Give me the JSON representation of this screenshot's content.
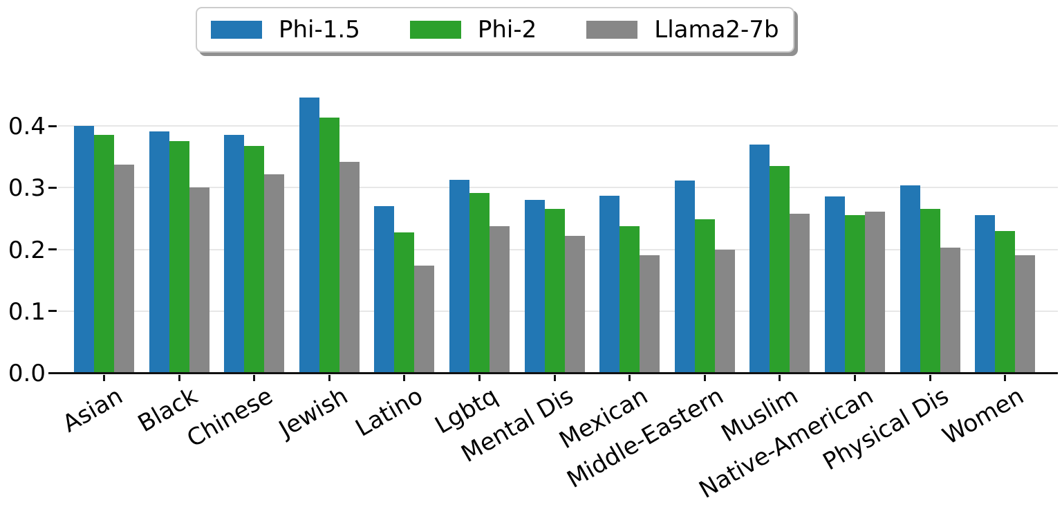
{
  "legend": {
    "items": [
      {
        "label": "Phi-1.5",
        "color": "#2277b4"
      },
      {
        "label": "Phi-2",
        "color": "#2ca02c"
      },
      {
        "label": "Llama2-7b",
        "color": "#878787"
      }
    ]
  },
  "chart_data": {
    "type": "bar",
    "title": "",
    "xlabel": "",
    "ylabel": "",
    "categories": [
      "Asian",
      "Black",
      "Chinese",
      "Jewish",
      "Latino",
      "Lgbtq",
      "Mental Dis",
      "Mexican",
      "Middle-Eastern",
      "Muslim",
      "Native-American",
      "Physical Dis",
      "Women"
    ],
    "series": [
      {
        "name": "Phi-1.5",
        "color": "#2277b4",
        "values": [
          0.4,
          0.391,
          0.385,
          0.446,
          0.27,
          0.313,
          0.28,
          0.287,
          0.312,
          0.37,
          0.286,
          0.304,
          0.256
        ]
      },
      {
        "name": "Phi-2",
        "color": "#2ca02c",
        "values": [
          0.385,
          0.375,
          0.367,
          0.413,
          0.228,
          0.291,
          0.266,
          0.238,
          0.249,
          0.335,
          0.256,
          0.266,
          0.23
        ]
      },
      {
        "name": "Llama2-7b",
        "color": "#878787",
        "values": [
          0.337,
          0.3,
          0.322,
          0.342,
          0.174,
          0.238,
          0.222,
          0.19,
          0.2,
          0.258,
          0.261,
          0.203,
          0.191
        ]
      }
    ],
    "ylim": [
      0,
      0.45
    ],
    "yticks": [
      0.0,
      0.1,
      0.2,
      0.3,
      0.4
    ],
    "ytick_labels": [
      "0.0",
      "0.1",
      "0.2",
      "0.3",
      "0.4"
    ],
    "grid": true,
    "legend_position": "top",
    "xtick_rotation_deg": 30
  }
}
